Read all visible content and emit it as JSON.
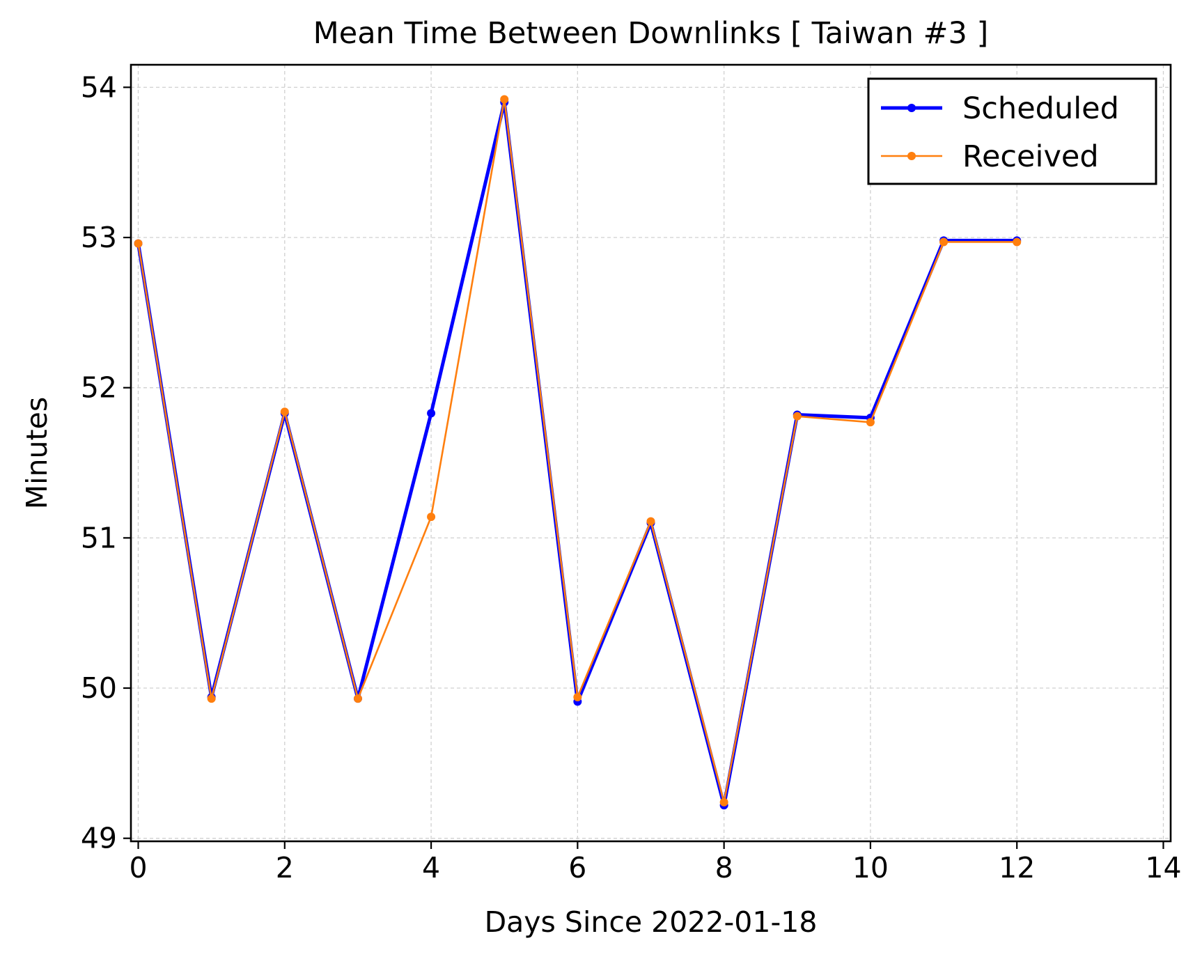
{
  "chart_data": {
    "type": "line",
    "title": "Mean Time Between Downlinks [ Taiwan #3 ]",
    "xlabel": "Days Since 2022-01-18",
    "ylabel": "Minutes",
    "xlim": [
      -0.1,
      14.1
    ],
    "ylim": [
      48.98,
      54.15
    ],
    "xticks": [
      0,
      2,
      4,
      6,
      8,
      10,
      12,
      14
    ],
    "yticks": [
      49,
      50,
      51,
      52,
      53,
      54
    ],
    "xtick_labels": [
      "0",
      "2",
      "4",
      "6",
      "8",
      "10",
      "12",
      "14"
    ],
    "ytick_labels": [
      "49",
      "50",
      "51",
      "52",
      "53",
      "54"
    ],
    "grid": true,
    "legend_position": "top-right",
    "x": [
      0,
      1,
      2,
      3,
      4,
      5,
      6,
      7,
      8,
      9,
      10,
      11,
      12
    ],
    "series": [
      {
        "name": "Scheduled",
        "color": "#0000ff",
        "values": [
          52.96,
          49.94,
          51.83,
          49.93,
          51.83,
          53.9,
          49.91,
          51.1,
          49.22,
          51.82,
          51.8,
          52.98,
          52.98
        ]
      },
      {
        "name": "Received",
        "color": "#ff7f0e",
        "values": [
          52.96,
          49.93,
          51.84,
          49.93,
          51.14,
          53.92,
          49.94,
          51.11,
          49.24,
          51.81,
          51.77,
          52.97,
          52.97
        ]
      }
    ]
  }
}
